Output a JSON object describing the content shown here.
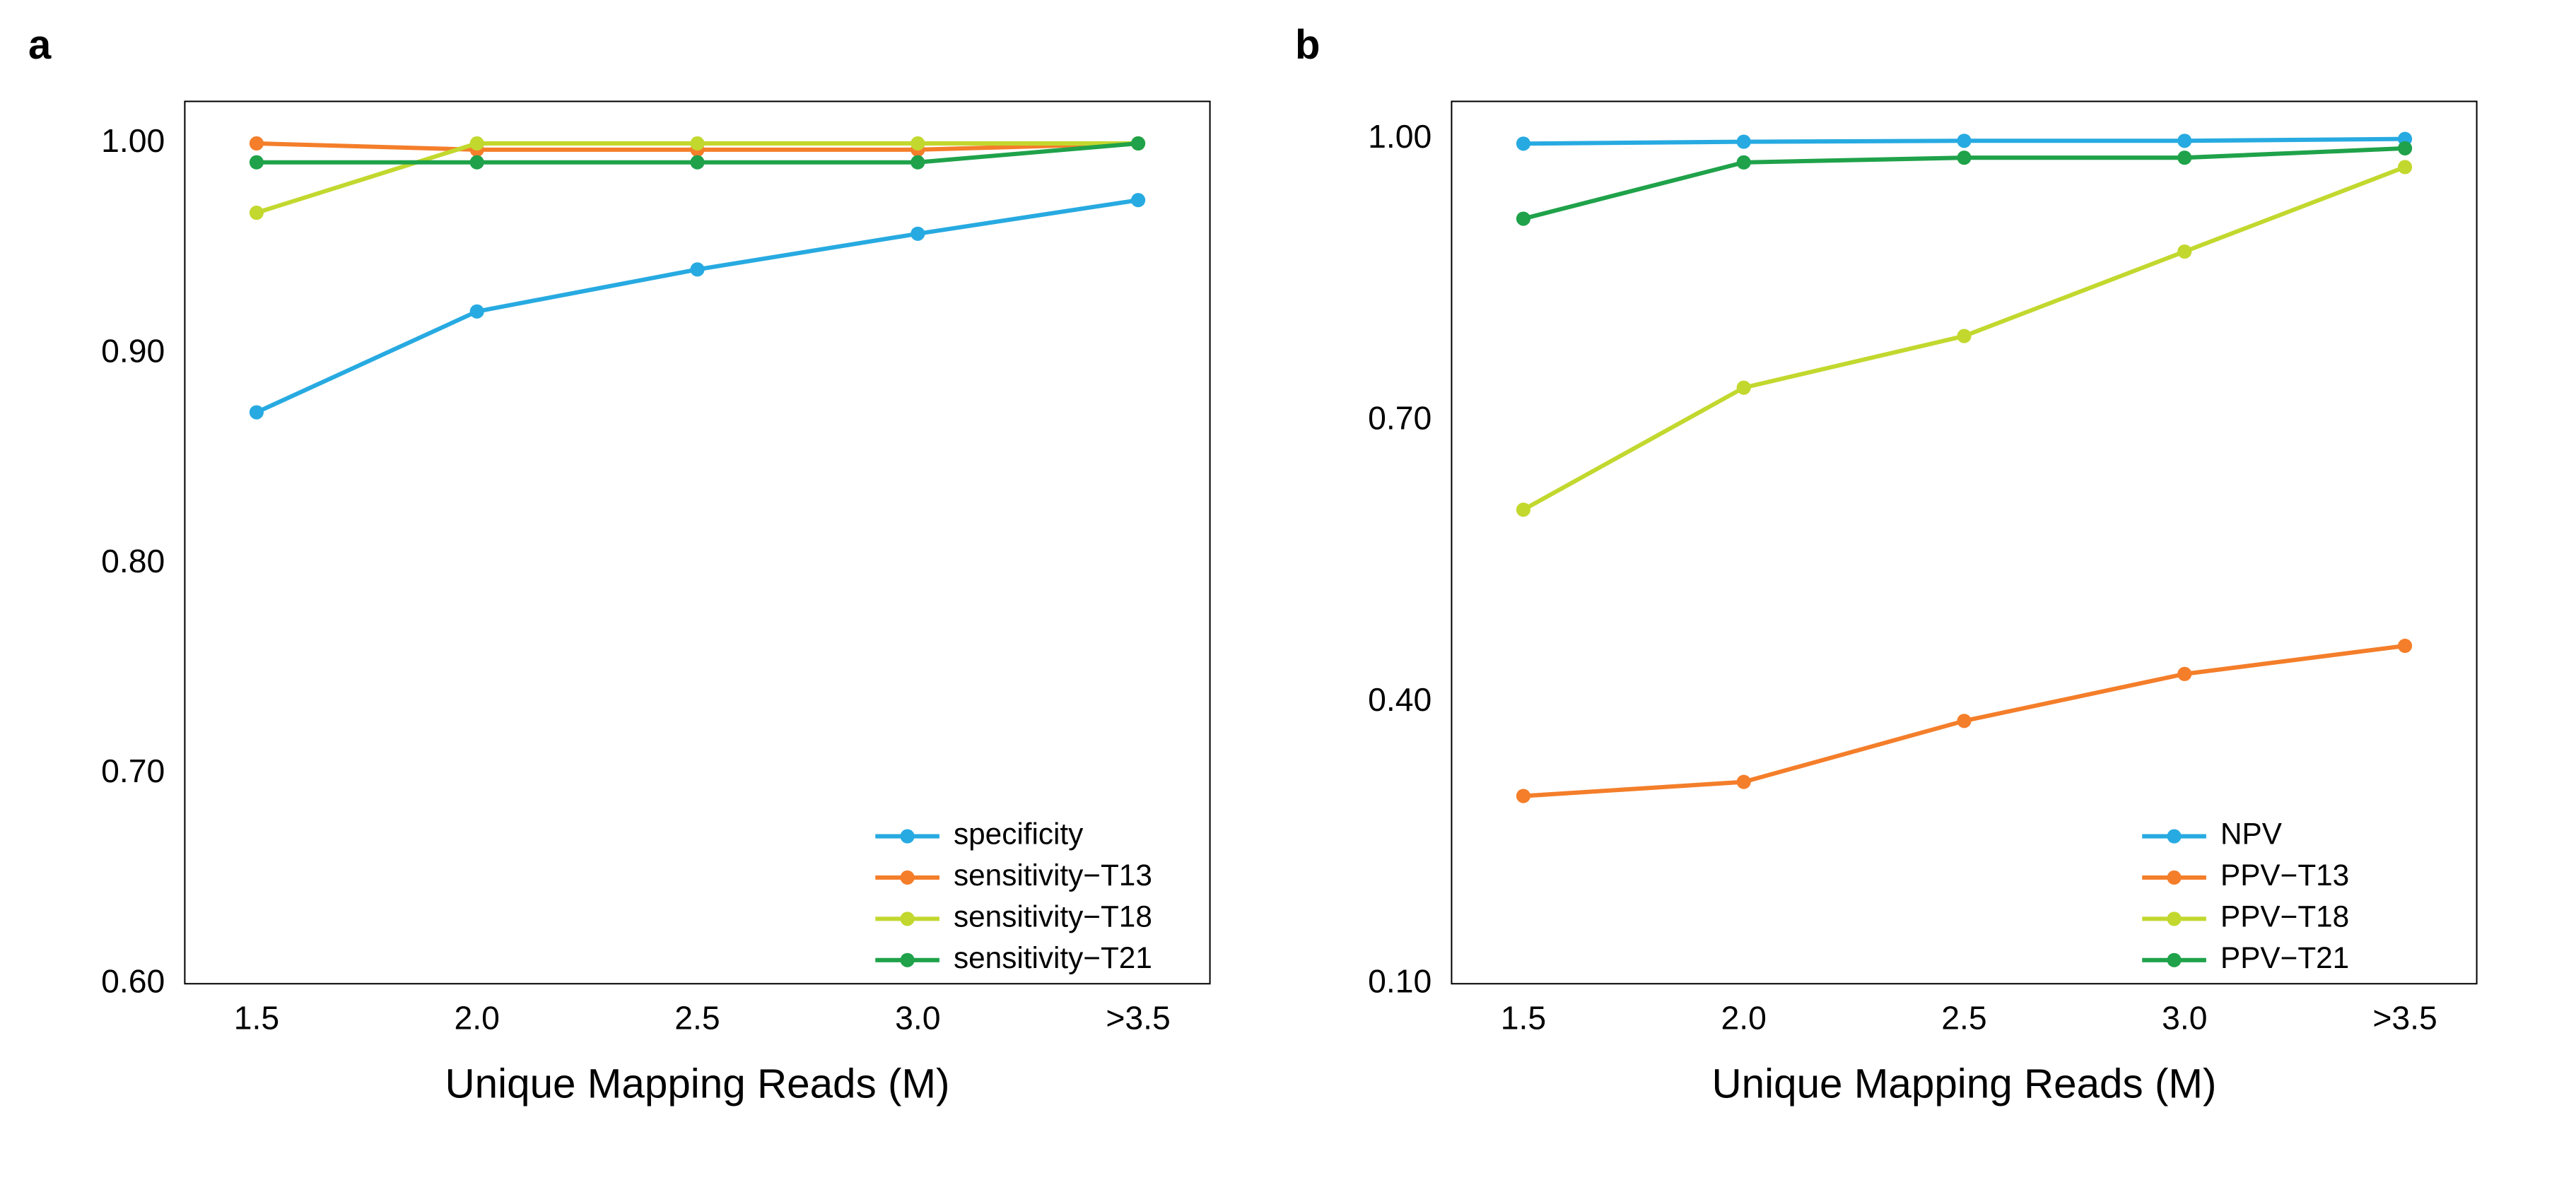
{
  "panels": {
    "a": {
      "label": "a",
      "type": "line",
      "xlabel": "Unique Mapping Reads (M)",
      "ylabel": "",
      "xticks": [
        "1.5",
        "2.0",
        "2.5",
        "3.0",
        ">3.5"
      ],
      "ylim": [
        0.6,
        1.02
      ],
      "yticks": [
        0.6,
        0.7,
        0.8,
        0.9,
        1.0
      ],
      "ytick_labels": [
        "0.60",
        "0.70",
        "0.80",
        "0.90",
        "1.00"
      ],
      "background_color": "#ffffff",
      "spine_color": "#000000",
      "label_fontsize": 58,
      "tick_fontsize": 46,
      "legend_fontsize": 42,
      "line_width": 6,
      "marker_radius": 10,
      "legend_position": "bottom-right",
      "series": [
        {
          "name": "specificity",
          "color": "#27aae1",
          "x": [
            0,
            1,
            2,
            3,
            4
          ],
          "y": [
            0.872,
            0.92,
            0.94,
            0.957,
            0.973
          ]
        },
        {
          "name": "sensitivity−T13",
          "color": "#f47e2a",
          "x": [
            0,
            1,
            2,
            3,
            4
          ],
          "y": [
            1.0,
            0.997,
            0.997,
            0.997,
            1.0
          ]
        },
        {
          "name": "sensitivity−T18",
          "color": "#c2d82e",
          "x": [
            0,
            1,
            2,
            3,
            4
          ],
          "y": [
            0.967,
            1.0,
            1.0,
            1.0,
            1.0
          ]
        },
        {
          "name": "sensitivity−T21",
          "color": "#1fa24a",
          "x": [
            0,
            1,
            2,
            3,
            4
          ],
          "y": [
            0.991,
            0.991,
            0.991,
            0.991,
            1.0
          ]
        }
      ]
    },
    "b": {
      "label": "b",
      "type": "line",
      "xlabel": "Unique Mapping Reads (M)",
      "ylabel": "",
      "xticks": [
        "1.5",
        "2.0",
        "2.5",
        "3.0",
        ">3.5"
      ],
      "ylim": [
        0.1,
        1.04
      ],
      "yticks": [
        0.1,
        0.4,
        0.7,
        1.0
      ],
      "ytick_labels": [
        "0.10",
        "0.40",
        "0.70",
        "1.00"
      ],
      "background_color": "#ffffff",
      "spine_color": "#000000",
      "label_fontsize": 58,
      "tick_fontsize": 46,
      "legend_fontsize": 42,
      "line_width": 6,
      "marker_radius": 10,
      "legend_position": "bottom-right",
      "series": [
        {
          "name": "NPV",
          "color": "#27aae1",
          "x": [
            0,
            1,
            2,
            3,
            4
          ],
          "y": [
            0.995,
            0.997,
            0.998,
            0.998,
            1.0
          ]
        },
        {
          "name": "PPV−T13",
          "color": "#f47e2a",
          "x": [
            0,
            1,
            2,
            3,
            4
          ],
          "y": [
            0.3,
            0.315,
            0.38,
            0.43,
            0.46
          ]
        },
        {
          "name": "PPV−T18",
          "color": "#c2d82e",
          "x": [
            0,
            1,
            2,
            3,
            4
          ],
          "y": [
            0.605,
            0.735,
            0.79,
            0.88,
            0.97
          ]
        },
        {
          "name": "PPV−T21",
          "color": "#1fa24a",
          "x": [
            0,
            1,
            2,
            3,
            4
          ],
          "y": [
            0.915,
            0.975,
            0.98,
            0.98,
            0.99
          ]
        }
      ]
    }
  }
}
